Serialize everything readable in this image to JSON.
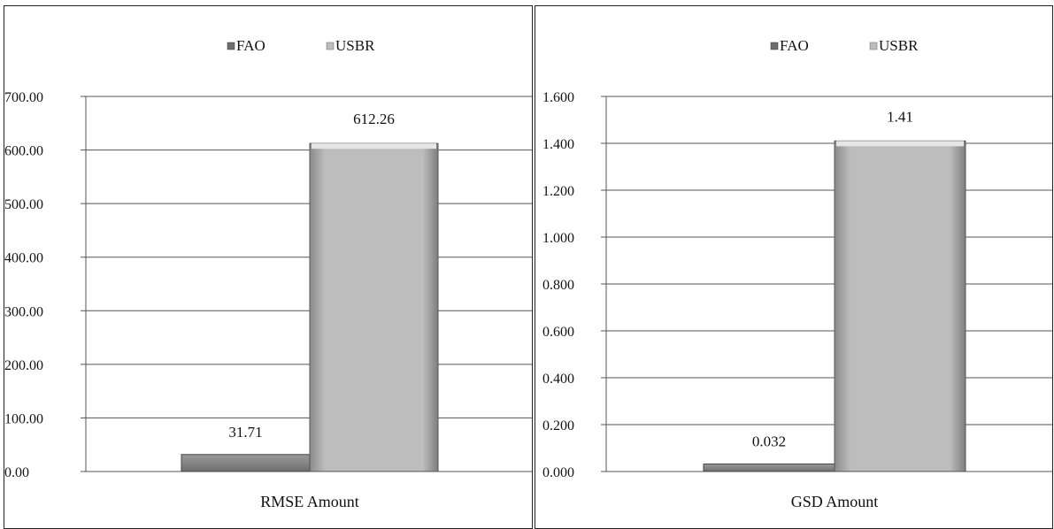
{
  "colors": {
    "fao": "#6f6f6f",
    "usbr": "#bdbdbd",
    "grid": "#555555"
  },
  "chart_data": [
    {
      "type": "bar",
      "legend": [
        "FAO",
        "USBR"
      ],
      "legend_position": "top-center",
      "categories": [
        "RMSE Amount"
      ],
      "series": [
        {
          "name": "FAO",
          "values": [
            31.71
          ]
        },
        {
          "name": "USBR",
          "values": [
            612.26
          ]
        }
      ],
      "data_labels": [
        "31.71",
        "612.26"
      ],
      "ylim": [
        0,
        700
      ],
      "yticks": [
        0,
        100,
        200,
        300,
        400,
        500,
        600,
        700
      ],
      "ytick_labels": [
        "0.00",
        "100.00",
        "200.00",
        "300.00",
        "400.00",
        "500.00",
        "600.00",
        "700.00"
      ],
      "grid": true
    },
    {
      "type": "bar",
      "legend": [
        "FAO",
        "USBR"
      ],
      "legend_position": "top-center",
      "categories": [
        "GSD Amount"
      ],
      "series": [
        {
          "name": "FAO",
          "values": [
            0.032
          ]
        },
        {
          "name": "USBR",
          "values": [
            1.41
          ]
        }
      ],
      "data_labels": [
        "0.032",
        "1.41"
      ],
      "ylim": [
        0,
        1.6
      ],
      "yticks": [
        0,
        0.2,
        0.4,
        0.6,
        0.8,
        1.0,
        1.2,
        1.4,
        1.6
      ],
      "ytick_labels": [
        "0.000",
        "0.200",
        "0.400",
        "0.600",
        "0.800",
        "1.000",
        "1.200",
        "1.400",
        "1.600"
      ],
      "grid": true
    }
  ]
}
